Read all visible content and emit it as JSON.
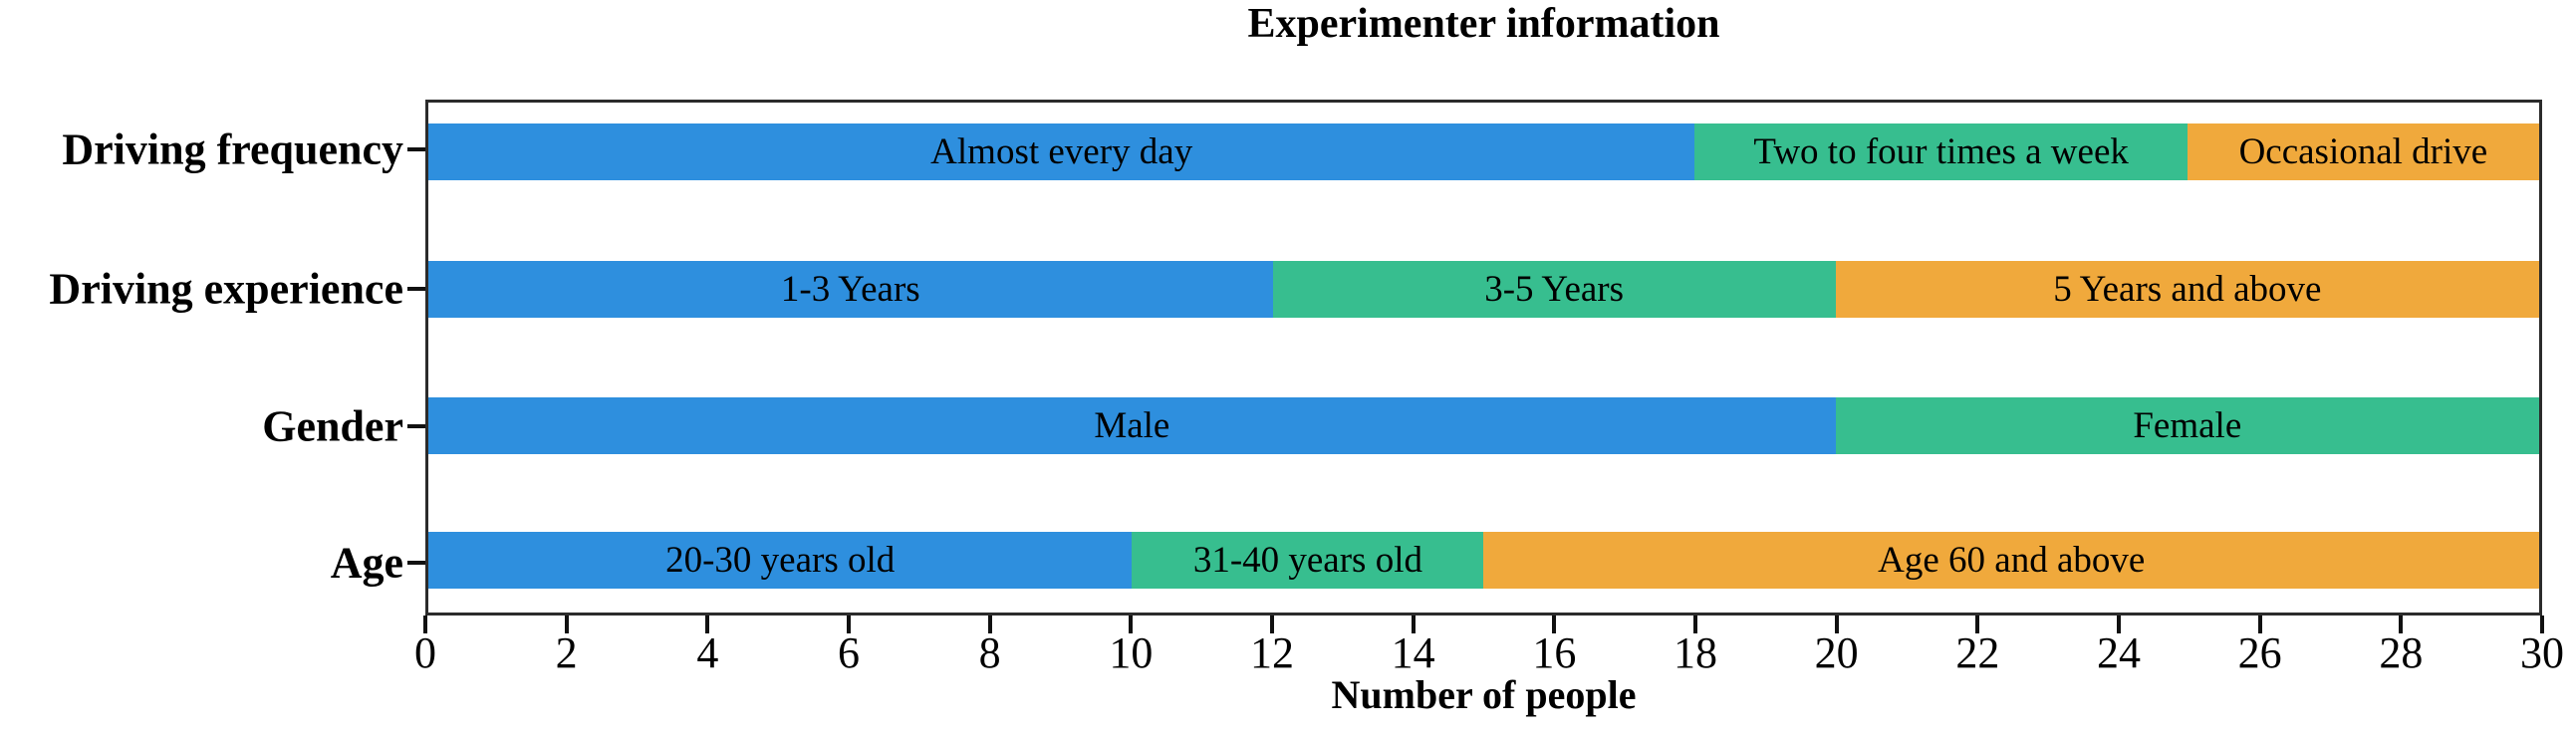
{
  "figure": {
    "title": "Experimenter information",
    "xlabel": "Number of people"
  },
  "chart_data": {
    "type": "bar",
    "orientation": "horizontal",
    "stacked": true,
    "title": "Experimenter information",
    "xlabel": "Number of people",
    "xlim": [
      0,
      30
    ],
    "xticks": [
      0,
      2,
      4,
      6,
      8,
      10,
      12,
      14,
      16,
      18,
      20,
      22,
      24,
      26,
      28,
      30
    ],
    "grid": false,
    "legend": "none",
    "palette": {
      "blue": "#2E8FDE",
      "green": "#37BE8F",
      "orange": "#F0A93C"
    },
    "categories": [
      "Driving frequency",
      "Driving experience",
      "Gender",
      "Age"
    ],
    "rows": [
      {
        "category": "Driving frequency",
        "segments": [
          {
            "label": "Almost every day",
            "value": 18,
            "color": "#2E8FDE"
          },
          {
            "label": "Two to four times a week",
            "value": 7,
            "color": "#37BE8F"
          },
          {
            "label": "Occasional drive",
            "value": 5,
            "color": "#F0A93C"
          }
        ]
      },
      {
        "category": "Driving experience",
        "segments": [
          {
            "label": "1-3 Years",
            "value": 12,
            "color": "#2E8FDE"
          },
          {
            "label": "3-5 Years",
            "value": 8,
            "color": "#37BE8F"
          },
          {
            "label": "5 Years and above",
            "value": 10,
            "color": "#F0A93C"
          }
        ]
      },
      {
        "category": "Gender",
        "segments": [
          {
            "label": "Male",
            "value": 20,
            "color": "#2E8FDE"
          },
          {
            "label": "Female",
            "value": 10,
            "color": "#37BE8F"
          }
        ]
      },
      {
        "category": "Age",
        "segments": [
          {
            "label": "20-30 years old",
            "value": 10,
            "color": "#2E8FDE"
          },
          {
            "label": "31-40 years old",
            "value": 5,
            "color": "#37BE8F"
          },
          {
            "label": "Age 60 and above",
            "value": 15,
            "color": "#F0A93C"
          }
        ]
      }
    ]
  }
}
